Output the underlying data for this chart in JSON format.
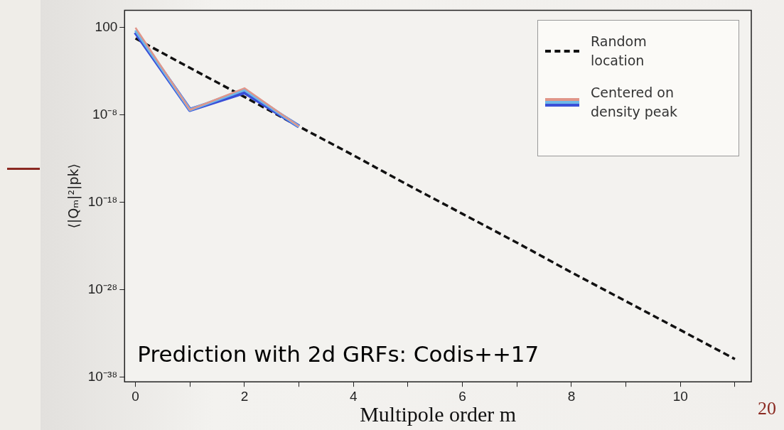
{
  "chart_data": {
    "type": "line",
    "xlabel": "Multipole order m",
    "ylabel": "⟨|Qₘ|²|pk⟩",
    "log": "y",
    "legend": "top right",
    "grid": false,
    "x": [
      0,
      1,
      2,
      3,
      4,
      5,
      6,
      7,
      8,
      9,
      10,
      11
    ],
    "xlim": [
      -0.2,
      11.3
    ],
    "xticks": [
      0,
      {
        "value": 1,
        "label": null
      },
      2,
      {
        "value": 3,
        "label": null
      },
      4,
      {
        "value": 5,
        "label": null
      },
      6,
      {
        "value": 7,
        "label": null
      },
      8,
      {
        "value": 9,
        "label": null
      },
      10,
      {
        "value": 11,
        "label": null
      }
    ],
    "ylim": [
      3e-39,
      10000.0
    ],
    "yticks": [
      100,
      {
        "value": 1e-08,
        "label": "10⁻⁸"
      },
      {
        "value": 1e-18,
        "label": "10⁻¹⁸"
      },
      {
        "value": 1e-28,
        "label": "10⁻²⁸"
      },
      {
        "value": 1e-38,
        "label": "10⁻³⁸"
      }
    ],
    "series": [
      {
        "name": "Centered on density peak",
        "color": "#e0968a",
        "line_style": "solid",
        "values": [
          100,
          4e-08,
          1.2e-05,
          5e-10,
          null,
          null,
          null,
          null,
          null,
          null,
          null,
          null
        ]
      },
      {
        "color": "#6fb8e8",
        "line_style": "solid",
        "values": [
          50,
          4e-08,
          8e-06,
          5e-10,
          null,
          null,
          null,
          null,
          null,
          null,
          null,
          null
        ]
      },
      {
        "color": "#3a4fd8",
        "line_style": "solid",
        "values": [
          30,
          4e-08,
          4e-06,
          5e-10,
          null,
          null,
          null,
          null,
          null,
          null,
          null,
          null
        ]
      },
      {
        "name": "Random location",
        "color": "#111111",
        "line_style": "dashed",
        "values": [
          6,
          0.0025,
          1.2e-06,
          5e-10,
          2.5e-13,
          1e-16,
          5e-20,
          2.5e-23,
          1e-26,
          5e-30,
          2.5e-33,
          1.2e-36
        ]
      }
    ],
    "annotations": [
      "Prediction with 2d GRFs: Codis++17",
      "20"
    ]
  }
}
